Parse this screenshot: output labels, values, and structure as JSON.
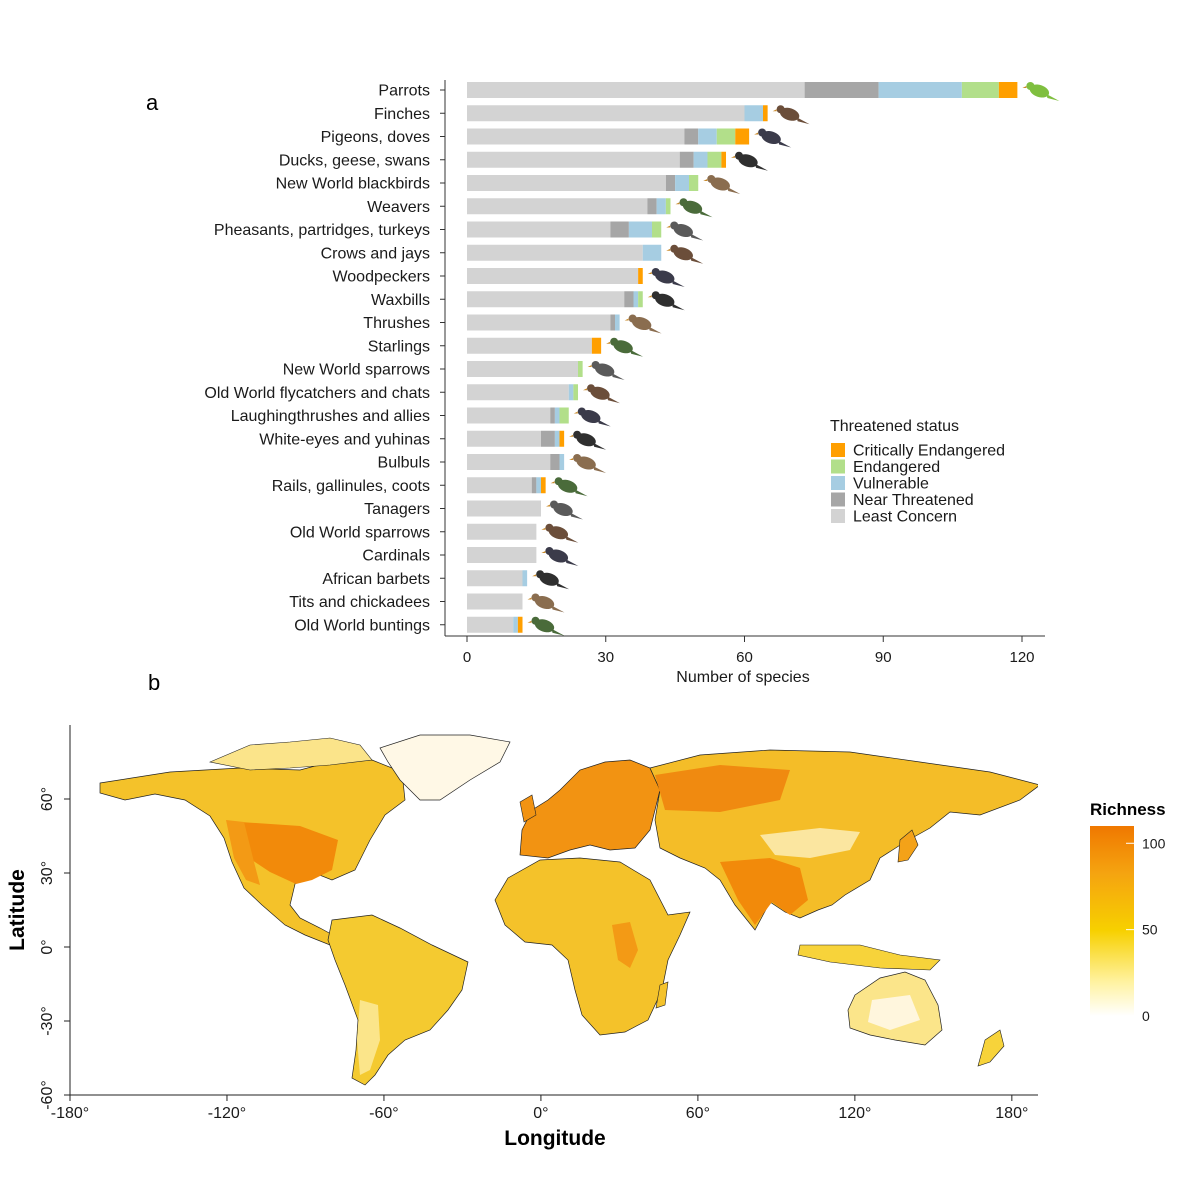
{
  "panel_a_label": "a",
  "panel_b_label": "b",
  "chart_data": [
    {
      "type": "bar",
      "orientation": "horizontal",
      "stacked": true,
      "xlabel": "Number of species",
      "ylabel": "",
      "xlim": [
        0,
        124
      ],
      "xticks": [
        0,
        30,
        60,
        90,
        120
      ],
      "grid": false,
      "legend_title": "Threatened status",
      "legend_position": "right",
      "categories": [
        "Parrots",
        "Finches",
        "Pigeons, doves",
        "Ducks, geese, swans",
        "New World blackbirds",
        "Weavers",
        "Pheasants, partridges, turkeys",
        "Crows and jays",
        "Woodpeckers",
        "Waxbills",
        "Thrushes",
        "Starlings",
        "New World sparrows",
        "Old World flycatchers and chats",
        "Laughingthrushes and allies",
        "White-eyes and yuhinas",
        "Bulbuls",
        "Rails, gallinules, coots",
        "Tanagers",
        "Old World sparrows",
        "Cardinals",
        "African barbets",
        "Tits and chickadees",
        "Old World buntings"
      ],
      "series": [
        {
          "name": "Least Concern",
          "color": "#d3d3d3",
          "values": [
            73,
            60,
            47,
            46,
            43,
            39,
            31,
            38,
            37,
            34,
            31,
            27,
            24,
            22,
            18,
            16,
            18,
            14,
            16,
            15,
            15,
            12,
            12,
            10
          ]
        },
        {
          "name": "Near Threatened",
          "color": "#a6a6a6",
          "values": [
            16,
            0,
            3,
            3,
            2,
            2,
            4,
            0,
            0,
            2,
            1,
            0,
            0,
            0,
            1,
            3,
            2,
            1,
            0,
            0,
            0,
            0,
            0,
            0
          ]
        },
        {
          "name": "Vulnerable",
          "color": "#a6cde2",
          "values": [
            18,
            4,
            4,
            3,
            3,
            2,
            5,
            4,
            0,
            1,
            1,
            0,
            0,
            1,
            1,
            1,
            1,
            1,
            0,
            0,
            0,
            1,
            0,
            1
          ]
        },
        {
          "name": "Endangered",
          "color": "#b2df8a",
          "values": [
            8,
            0,
            4,
            3,
            2,
            1,
            2,
            0,
            0,
            1,
            0,
            0,
            1,
            1,
            2,
            0,
            0,
            0,
            0,
            0,
            0,
            0,
            0,
            0
          ]
        },
        {
          "name": "Critically Endangered",
          "color": "#ff9f00",
          "values": [
            4,
            1,
            3,
            1,
            0,
            0,
            0,
            0,
            1,
            0,
            0,
            2,
            0,
            0,
            0,
            1,
            0,
            1,
            0,
            0,
            0,
            0,
            0,
            1
          ]
        }
      ],
      "legend_order": [
        "Critically Endangered",
        "Endangered",
        "Vulnerable",
        "Near Threatened",
        "Least Concern"
      ]
    },
    {
      "type": "heatmap",
      "subtype": "choropleth map",
      "xlabel": "Longitude",
      "ylabel": "Latitude",
      "xlim": [
        -180,
        190
      ],
      "ylim": [
        -60,
        90
      ],
      "xticks": [
        "-180°",
        "-120°",
        "-60°",
        "0°",
        "60°",
        "120°",
        "180°"
      ],
      "yticks": [
        "-60°",
        "-30°",
        "0°",
        "30°",
        "60°"
      ],
      "colorbar_title": "Richness",
      "colorbar_ticks": [
        "0",
        "50",
        "100"
      ],
      "colorbar_range": [
        0,
        110
      ],
      "color_low": "#ffffff",
      "color_mid": "#f7d000",
      "color_high": "#f07800"
    }
  ]
}
